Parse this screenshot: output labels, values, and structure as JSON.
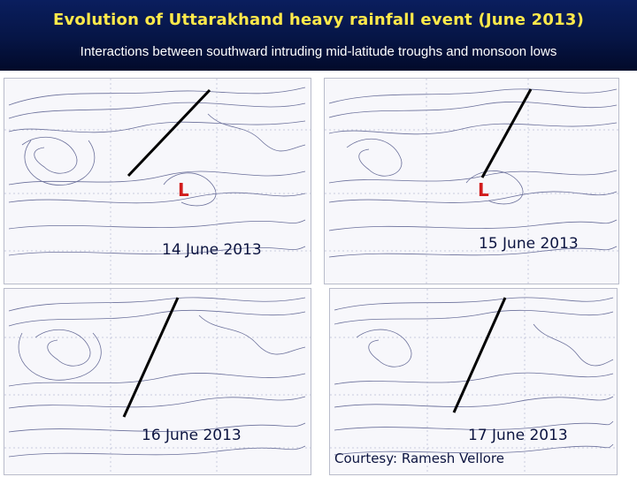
{
  "header": {
    "title": "Evolution of Uttarakhand heavy rainfall event (June  2013)",
    "subtitle": "Interactions between southward intruding mid-latitude troughs and monsoon lows"
  },
  "panels": [
    {
      "date": "14 June 2013",
      "low_label": "L"
    },
    {
      "date": "15 June 2013",
      "low_label": "L"
    },
    {
      "date": "16 June 2013"
    },
    {
      "date": "17 June 2013"
    }
  ],
  "courtesy": "Courtesy:  Ramesh Vellore",
  "colors": {
    "title": "#ffe94a",
    "header_bg": "#061545",
    "low": "#d11c1c",
    "contours": "#6a6f9a",
    "trough_line": "#000000"
  }
}
